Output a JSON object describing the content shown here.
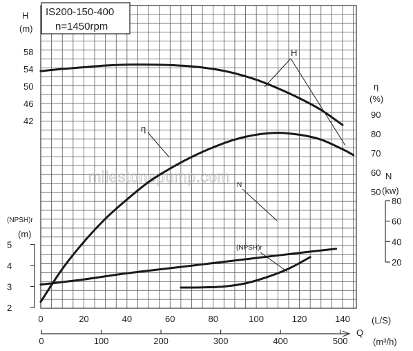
{
  "title_box": {
    "model": "IS200-150-400",
    "speed": "n=1450rpm"
  },
  "watermark": "milestonepump.com",
  "axes": {
    "H_unit_top": "H",
    "H_unit_bottom": "(m)",
    "eta_unit_top": "η",
    "eta_unit_bottom": "(%)",
    "N_unit_top": "N",
    "N_unit_bottom": "(kw)",
    "NPSH_unit_top": "(NPSH)r",
    "NPSH_unit_bottom": "(m)",
    "Q_label": "Q",
    "Q_ls_unit": "(L/S)",
    "Q_m3h_unit": "(m³/h)"
  },
  "ticks": {
    "H": [
      "58",
      "54",
      "50",
      "46",
      "42"
    ],
    "eta": [
      "90",
      "80",
      "70",
      "60",
      "50"
    ],
    "N": [
      "80",
      "60",
      "40",
      "20"
    ],
    "NPSH": [
      "5",
      "4",
      "3",
      "2"
    ],
    "Q_ls": [
      "0",
      "20",
      "40",
      "60",
      "80",
      "100",
      "120",
      "140"
    ],
    "Q_m3h": [
      "0",
      "100",
      "200",
      "300",
      "400",
      "500"
    ]
  },
  "curve_labels": {
    "H": "H",
    "eta": "η",
    "N": "N",
    "NPSH": "(NPSH)r"
  },
  "chart_data": {
    "type": "line",
    "x_unit": "L/S",
    "x_secondary_unit": "m3/h",
    "xlim": [
      0,
      145
    ],
    "grid": true,
    "series": [
      {
        "name": "H",
        "unit": "m",
        "x": [
          0,
          10,
          20,
          30,
          40,
          50,
          60,
          70,
          80,
          90,
          100,
          110,
          120,
          130,
          140
        ],
        "y": [
          53.5,
          54.0,
          54.4,
          54.8,
          55.0,
          55.0,
          54.9,
          54.6,
          54.0,
          53.0,
          51.5,
          49.5,
          47.2,
          44.5,
          41.0
        ]
      },
      {
        "name": "η",
        "unit": "%",
        "x": [
          0,
          10,
          20,
          30,
          40,
          50,
          60,
          70,
          80,
          90,
          100,
          110,
          120,
          130,
          140,
          145
        ],
        "y": [
          -7,
          10,
          24,
          36,
          46,
          55,
          62,
          68,
          73,
          77,
          79.5,
          80.5,
          79.5,
          77,
          72,
          69
        ]
      },
      {
        "name": "N",
        "unit": "kw",
        "x": [
          0,
          20,
          40,
          60,
          80,
          100,
          120,
          137
        ],
        "y": [
          -2,
          3,
          9,
          14,
          19,
          24,
          29,
          33
        ]
      },
      {
        "name": "(NPSH)r",
        "unit": "m",
        "x": [
          65,
          75,
          85,
          95,
          105,
          115,
          125
        ],
        "y": [
          2.95,
          2.96,
          3.0,
          3.15,
          3.45,
          3.85,
          4.4
        ]
      }
    ]
  }
}
